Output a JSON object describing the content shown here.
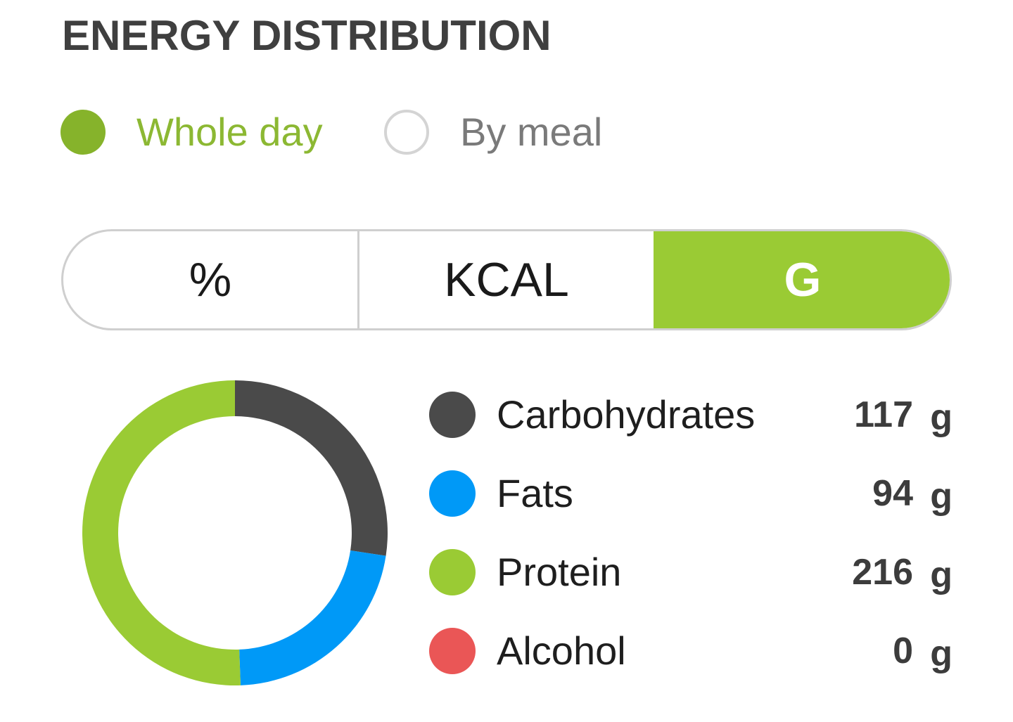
{
  "header": {
    "title": "ENERGY DISTRIBUTION"
  },
  "view_mode": {
    "options": [
      {
        "label": "Whole day",
        "selected": true
      },
      {
        "label": "By meal",
        "selected": false
      }
    ]
  },
  "unit_tabs": {
    "tabs": [
      {
        "label": "%",
        "active": false
      },
      {
        "label": "KCAL",
        "active": false
      },
      {
        "label": "G",
        "active": true
      }
    ]
  },
  "colors": {
    "accent": "#9acb34",
    "radio_selected": "#86b32b",
    "carbohydrates": "#4a4a4a",
    "fats": "#0099f7",
    "protein": "#9acb34",
    "alcohol": "#ea5656"
  },
  "chart_data": {
    "type": "pie",
    "donut": true,
    "unit": "g",
    "categories": [
      "Carbohydrates",
      "Fats",
      "Protein",
      "Alcohol"
    ],
    "values": [
      117,
      94,
      216,
      0
    ],
    "colors": [
      "#4a4a4a",
      "#0099f7",
      "#9acb34",
      "#ea5656"
    ]
  },
  "legend": {
    "items": [
      {
        "label": "Carbohydrates",
        "value": "117",
        "unit": "g",
        "color": "#4a4a4a"
      },
      {
        "label": "Fats",
        "value": "94",
        "unit": "g",
        "color": "#0099f7"
      },
      {
        "label": "Protein",
        "value": "216",
        "unit": "g",
        "color": "#9acb34"
      },
      {
        "label": "Alcohol",
        "value": "0",
        "unit": "g",
        "color": "#ea5656"
      }
    ]
  }
}
